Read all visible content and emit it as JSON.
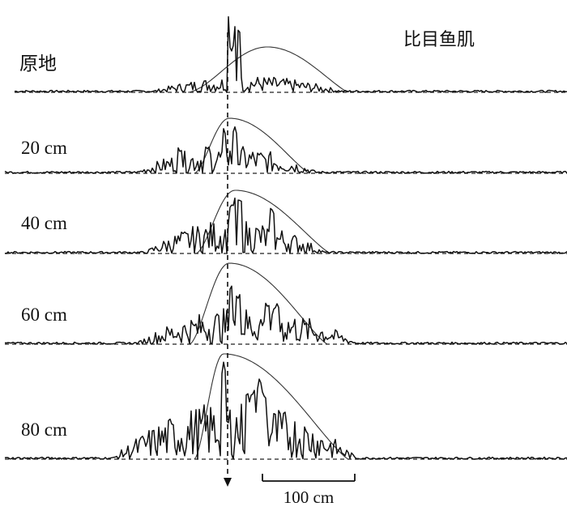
{
  "chart_data": {
    "type": "line",
    "muscle_label": "比目鱼肌",
    "scale_bar_label": "100 cm",
    "panels": [
      {
        "label": "原地"
      },
      {
        "label": "20 cm"
      },
      {
        "label": "40 cm"
      },
      {
        "label": "60 cm"
      },
      {
        "label": "80 cm"
      }
    ],
    "grid": false,
    "legend": "none",
    "colors": {
      "trace": "#111111",
      "envelope": "#333333",
      "baseline": "#222222"
    }
  }
}
